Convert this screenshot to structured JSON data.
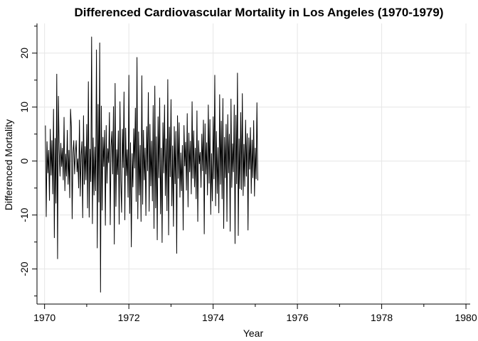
{
  "chart_data": {
    "type": "line",
    "title": "Differenced Cardiovascular Mortality in Los Angeles (1970-1979)",
    "xlabel": "Year",
    "ylabel": "Differenced Mortality",
    "xlim": [
      1969.82,
      1980.1
    ],
    "ylim": [
      -26.5,
      25.5
    ],
    "x_ticks": [
      1970,
      1972,
      1974,
      1976,
      1978,
      1980
    ],
    "y_ticks": [
      -20,
      -10,
      0,
      10,
      20
    ],
    "grid": true,
    "legend": "none",
    "series": [
      {
        "x_start": 1970.02,
        "x_step": 0.019231,
        "line_color": "#000000",
        "values": [
          6.6,
          -10.3,
          3.6,
          -2.2,
          2.0,
          -7.3,
          5.9,
          -2.6,
          3.8,
          -6.1,
          9.6,
          -14.2,
          4.2,
          -7.8,
          16.1,
          -18.1,
          12.0,
          2.1,
          -2.8,
          3.3,
          -1.0,
          2.4,
          -3.5,
          8.1,
          -5.5,
          1.3,
          -2.8,
          5.7,
          -4.3,
          2.0,
          -6.8,
          9.6,
          6.3,
          -10.7,
          1.6,
          3.8,
          -2.4,
          1.4,
          3.8,
          -2.0,
          0.4,
          -5.0,
          7.6,
          -6.5,
          1.0,
          3.6,
          -10.5,
          8.4,
          -4.3,
          2.7,
          -3.5,
          6.8,
          -8.7,
          14.7,
          -10.4,
          2.2,
          -3.8,
          23.0,
          -11.6,
          4.3,
          -6.3,
          2.6,
          -5.5,
          20.6,
          -16.1,
          10.5,
          -7.6,
          21.9,
          -24.3,
          10.2,
          -9.1,
          4.4,
          -1.0,
          5.7,
          -11.9,
          6.6,
          -4.1,
          2.3,
          -0.3,
          9.0,
          -11.8,
          2.7,
          5.5,
          -2.4,
          10.1,
          -15.4,
          14.4,
          -8.4,
          2.1,
          -2.5,
          5.6,
          -11.7,
          11.0,
          -3.6,
          -9.5,
          5.9,
          -1.2,
          12.8,
          -10.9,
          6.1,
          -2.7,
          2.1,
          -6.7,
          15.9,
          -9.7,
          3.4,
          -15.9,
          1.4,
          -4.8,
          6.0,
          -1.3,
          9.8,
          -7.5,
          19.2,
          -10.7,
          5.4,
          -6.3,
          2.9,
          -11.2,
          15.8,
          -8.0,
          5.7,
          -3.5,
          2.4,
          -10.1,
          6.4,
          -1.8,
          12.7,
          -9.3,
          6.8,
          -4.6,
          3.7,
          -7.4,
          10.3,
          -12.5,
          13.9,
          -8.7,
          4.5,
          -14.6,
          8.2,
          -3.1,
          11.7,
          -9.8,
          2.4,
          -15.1,
          7.1,
          -2.2,
          10.4,
          -6.4,
          4.1,
          -9.2,
          15.1,
          -13.7,
          6.3,
          -2.9,
          11.4,
          -8.3,
          2.8,
          -12.1,
          6.4,
          -4.2,
          5.5,
          -17.1,
          8.4,
          -3.2,
          7.1,
          -6.7,
          1.5,
          -5.5,
          2.9,
          -12.8,
          6.6,
          -0.9,
          3.5,
          -5.4,
          8.8,
          -8.5,
          5.2,
          -2.0,
          3.7,
          -6.1,
          11.0,
          -3.2,
          5.6,
          -4.8,
          2.4,
          -7.0,
          9.3,
          -11.2,
          3.8,
          -0.5,
          1.6,
          -4.9,
          5.0,
          -1.8,
          7.6,
          -13.5,
          6.9,
          -2.4,
          3.4,
          -6.3,
          10.4,
          -4.1,
          7.7,
          -9.9,
          1.4,
          -7.4,
          8.2,
          -3.3,
          15.9,
          -8.3,
          5.5,
          -6.0,
          2.5,
          -9.6,
          12.3,
          -4.3,
          7.4,
          -7.0,
          11.6,
          -12.5,
          4.4,
          -3.1,
          6.8,
          -11.2,
          8.6,
          -2.2,
          5.0,
          -13.0,
          11.5,
          -4.9,
          3.2,
          -2.0,
          10.4,
          -15.3,
          8.5,
          -4.2,
          16.3,
          -13.8,
          4.1,
          -5.1,
          9.0,
          -5.3,
          12.5,
          -6.4,
          3.1,
          -4.7,
          7.6,
          -2.8,
          5.1,
          -12.8,
          4.3,
          -1.5,
          6.2,
          -6.0,
          3.9,
          -3.1,
          7.5,
          -6.5,
          2.4,
          -3.3,
          10.8,
          -3.6
        ]
      }
    ]
  }
}
